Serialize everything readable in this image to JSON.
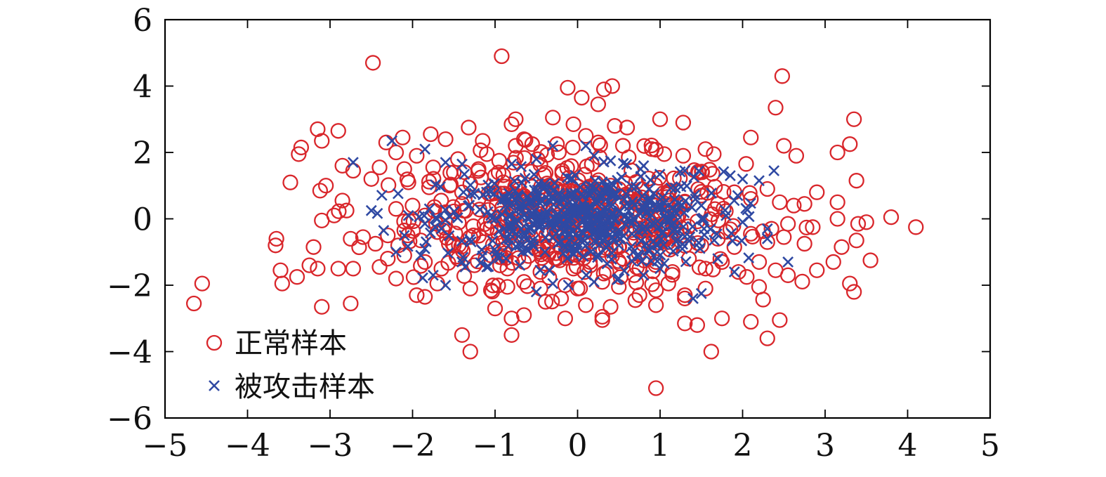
{
  "chart_data": {
    "type": "scatter",
    "title": "",
    "xlabel": "",
    "ylabel": "",
    "xlim": [
      -5,
      5
    ],
    "ylim": [
      -6,
      6
    ],
    "xticks": [
      -5,
      -4,
      -3,
      -2,
      -1,
      0,
      1,
      2,
      3,
      4,
      5
    ],
    "yticks": [
      -6,
      -4,
      -2,
      0,
      2,
      4,
      6
    ],
    "xtick_labels": [
      "−5",
      "−4",
      "−3",
      "−2",
      "−1",
      "0",
      "1",
      "2",
      "3",
      "4",
      "5"
    ],
    "ytick_labels": [
      "−6",
      "−4",
      "−2",
      "0",
      "2",
      "4",
      "6"
    ],
    "grid": false,
    "legend_position": "bottom-left",
    "series": [
      {
        "name": "正常样本",
        "marker": "circle",
        "color": "#d9262b",
        "points": [
          [
            -0.92,
            4.9
          ],
          [
            -2.48,
            4.7
          ],
          [
            2.48,
            4.3
          ],
          [
            0.42,
            4.0
          ],
          [
            0.32,
            3.9
          ],
          [
            -0.12,
            3.95
          ],
          [
            0.05,
            3.65
          ],
          [
            2.4,
            3.35
          ],
          [
            0.25,
            3.45
          ],
          [
            -0.75,
            3.0
          ],
          [
            -0.8,
            2.85
          ],
          [
            1.0,
            3.0
          ],
          [
            1.28,
            2.9
          ],
          [
            3.35,
            3.0
          ],
          [
            -0.3,
            3.05
          ],
          [
            -0.05,
            2.85
          ],
          [
            0.45,
            2.8
          ],
          [
            0.6,
            2.75
          ],
          [
            -3.15,
            2.7
          ],
          [
            -2.9,
            2.65
          ],
          [
            -1.78,
            2.55
          ],
          [
            -1.32,
            2.75
          ],
          [
            -3.1,
            2.35
          ],
          [
            -3.35,
            2.15
          ],
          [
            -3.38,
            1.95
          ],
          [
            -2.12,
            2.45
          ],
          [
            -2.32,
            2.3
          ],
          [
            -1.6,
            2.4
          ],
          [
            -1.15,
            2.35
          ],
          [
            -0.65,
            2.4
          ],
          [
            -0.55,
            2.25
          ],
          [
            -0.75,
            2.2
          ],
          [
            -0.25,
            2.25
          ],
          [
            0.1,
            2.5
          ],
          [
            0.25,
            2.3
          ],
          [
            0.55,
            2.2
          ],
          [
            0.9,
            2.1
          ],
          [
            1.05,
            1.95
          ],
          [
            1.28,
            1.9
          ],
          [
            1.55,
            2.1
          ],
          [
            1.65,
            1.95
          ],
          [
            2.1,
            2.45
          ],
          [
            2.5,
            2.2
          ],
          [
            2.65,
            1.9
          ],
          [
            3.15,
            2.0
          ],
          [
            3.3,
            2.25
          ],
          [
            -2.2,
            2.0
          ],
          [
            -1.95,
            1.9
          ],
          [
            -1.45,
            1.8
          ],
          [
            -1.1,
            1.95
          ],
          [
            -0.95,
            1.75
          ],
          [
            -2.85,
            1.6
          ],
          [
            -2.72,
            1.45
          ],
          [
            -2.4,
            1.55
          ],
          [
            -2.1,
            1.5
          ],
          [
            -1.75,
            1.55
          ],
          [
            -1.5,
            1.4
          ],
          [
            -1.2,
            1.5
          ],
          [
            -1.0,
            1.3
          ],
          [
            -3.05,
            1.0
          ],
          [
            -3.12,
            0.85
          ],
          [
            -2.5,
            1.2
          ],
          [
            -2.05,
            1.1
          ],
          [
            -1.8,
            0.95
          ],
          [
            -1.55,
            1.0
          ],
          [
            -1.3,
            1.05
          ],
          [
            -0.9,
            1.1
          ],
          [
            -2.85,
            0.55
          ],
          [
            -2.8,
            0.25
          ],
          [
            -2.95,
            0.1
          ],
          [
            -3.1,
            -0.05
          ],
          [
            -2.2,
            0.3
          ],
          [
            -2.0,
            0.4
          ],
          [
            -1.85,
            0.1
          ],
          [
            -1.6,
            0.2
          ],
          [
            -1.4,
            0.45
          ],
          [
            -1.2,
            0.6
          ],
          [
            -1.05,
            0.75
          ],
          [
            -0.85,
            0.6
          ],
          [
            -0.65,
            0.5
          ],
          [
            -0.45,
            0.7
          ],
          [
            -0.25,
            0.9
          ],
          [
            -0.1,
            0.6
          ],
          [
            0.1,
            0.8
          ],
          [
            0.3,
            0.55
          ],
          [
            0.5,
            0.9
          ],
          [
            0.7,
            0.7
          ],
          [
            0.9,
            0.45
          ],
          [
            1.1,
            0.8
          ],
          [
            1.3,
            0.5
          ],
          [
            1.5,
            0.7
          ],
          [
            1.7,
            0.45
          ],
          [
            1.9,
            0.8
          ],
          [
            2.1,
            0.6
          ],
          [
            2.3,
            0.9
          ],
          [
            2.45,
            0.5
          ],
          [
            2.62,
            0.4
          ],
          [
            2.75,
            0.45
          ],
          [
            2.9,
            0.8
          ],
          [
            3.15,
            0.5
          ],
          [
            3.38,
            1.15
          ],
          [
            3.8,
            0.05
          ],
          [
            4.1,
            -0.25
          ],
          [
            3.4,
            -0.15
          ],
          [
            3.5,
            -0.1
          ],
          [
            3.15,
            0.0
          ],
          [
            2.85,
            -0.25
          ],
          [
            2.55,
            -0.15
          ],
          [
            2.35,
            -0.3
          ],
          [
            -3.65,
            -0.6
          ],
          [
            -3.66,
            -0.8
          ],
          [
            -2.75,
            -0.6
          ],
          [
            -2.6,
            -0.55
          ],
          [
            -2.45,
            -0.75
          ],
          [
            -2.3,
            -0.5
          ],
          [
            -2.1,
            -0.35
          ],
          [
            -1.9,
            -0.65
          ],
          [
            -1.7,
            -0.4
          ],
          [
            -1.5,
            -0.8
          ],
          [
            -1.3,
            -0.55
          ],
          [
            -1.1,
            -0.3
          ],
          [
            -0.9,
            -0.7
          ],
          [
            -0.7,
            -0.5
          ],
          [
            -0.5,
            -0.9
          ],
          [
            -0.3,
            -0.6
          ],
          [
            -0.1,
            -0.4
          ],
          [
            0.1,
            -0.75
          ],
          [
            0.3,
            -0.5
          ],
          [
            0.5,
            -0.85
          ],
          [
            0.7,
            -0.6
          ],
          [
            0.9,
            -0.3
          ],
          [
            1.1,
            -0.7
          ],
          [
            1.3,
            -0.5
          ],
          [
            1.5,
            -0.8
          ],
          [
            1.7,
            -0.6
          ],
          [
            1.9,
            -0.85
          ],
          [
            2.1,
            -0.45
          ],
          [
            2.3,
            -0.7
          ],
          [
            2.5,
            -0.55
          ],
          [
            2.75,
            -0.75
          ],
          [
            3.2,
            -0.85
          ],
          [
            3.38,
            -0.65
          ],
          [
            3.55,
            -1.25
          ],
          [
            3.1,
            -1.3
          ],
          [
            2.9,
            -1.55
          ],
          [
            -3.2,
            -0.85
          ],
          [
            -3.25,
            -1.4
          ],
          [
            -3.15,
            -1.5
          ],
          [
            -2.9,
            -1.5
          ],
          [
            -2.72,
            -1.5
          ],
          [
            -2.3,
            -1.2
          ],
          [
            -2.1,
            -1.1
          ],
          [
            -1.85,
            -1.3
          ],
          [
            -1.65,
            -1.5
          ],
          [
            -1.45,
            -1.2
          ],
          [
            -1.25,
            -1.4
          ],
          [
            -1.05,
            -1.1
          ],
          [
            -0.85,
            -1.5
          ],
          [
            -0.65,
            -1.3
          ],
          [
            -0.45,
            -1.6
          ],
          [
            -0.25,
            -1.2
          ],
          [
            -0.05,
            -1.5
          ],
          [
            0.15,
            -1.3
          ],
          [
            0.35,
            -1.6
          ],
          [
            0.55,
            -1.2
          ],
          [
            0.75,
            -1.5
          ],
          [
            0.95,
            -1.3
          ],
          [
            1.15,
            -1.6
          ],
          [
            1.35,
            -1.2
          ],
          [
            1.55,
            -1.5
          ],
          [
            1.75,
            -1.3
          ],
          [
            1.95,
            -1.6
          ],
          [
            2.2,
            -1.3
          ],
          [
            2.4,
            -1.55
          ],
          [
            2.55,
            -1.7
          ],
          [
            -3.6,
            -1.55
          ],
          [
            -3.58,
            -1.95
          ],
          [
            -3.4,
            -1.75
          ],
          [
            -2.4,
            -1.45
          ],
          [
            -2.2,
            -1.8
          ],
          [
            -1.95,
            -2.3
          ],
          [
            -1.85,
            -2.35
          ],
          [
            -1.7,
            -1.95
          ],
          [
            -1.3,
            -2.1
          ],
          [
            -1.05,
            -2.15
          ],
          [
            -0.85,
            -2.05
          ],
          [
            -0.65,
            -1.9
          ],
          [
            -0.45,
            -2.1
          ],
          [
            -0.15,
            -2.0
          ],
          [
            0.0,
            -2.1
          ],
          [
            0.3,
            -1.9
          ],
          [
            0.5,
            -2.05
          ],
          [
            0.75,
            -2.3
          ],
          [
            0.95,
            -2.15
          ],
          [
            1.1,
            -1.95
          ],
          [
            1.3,
            -2.3
          ],
          [
            1.55,
            -2.1
          ],
          [
            2.05,
            -1.75
          ],
          [
            2.2,
            -2.05
          ],
          [
            3.3,
            -1.95
          ],
          [
            3.35,
            -2.2
          ],
          [
            -4.55,
            -1.95
          ],
          [
            -4.65,
            -2.55
          ],
          [
            -3.1,
            -2.65
          ],
          [
            -2.75,
            -2.55
          ],
          [
            -1.0,
            -2.7
          ],
          [
            -0.65,
            -2.9
          ],
          [
            -0.2,
            -2.4
          ],
          [
            0.1,
            -2.6
          ],
          [
            0.4,
            -2.65
          ],
          [
            0.7,
            -2.45
          ],
          [
            0.95,
            -2.6
          ],
          [
            1.3,
            -2.4
          ],
          [
            0.3,
            -2.95
          ],
          [
            0.3,
            -3.05
          ],
          [
            -0.15,
            -3.0
          ],
          [
            -0.8,
            -3.0
          ],
          [
            1.3,
            -3.15
          ],
          [
            1.45,
            -3.2
          ],
          [
            1.75,
            -3.0
          ],
          [
            2.1,
            -3.1
          ],
          [
            2.45,
            -3.05
          ],
          [
            -0.8,
            -3.5
          ],
          [
            -1.4,
            -3.5
          ],
          [
            2.3,
            -3.6
          ],
          [
            -1.3,
            -4.0
          ],
          [
            1.62,
            -4.0
          ],
          [
            0.95,
            -5.1
          ]
        ]
      },
      {
        "name": "被攻击样本",
        "marker": "x",
        "color": "#2f49a3",
        "points": [
          [
            -2.25,
            2.35
          ],
          [
            -1.85,
            2.1
          ],
          [
            -2.72,
            1.7
          ],
          [
            -1.6,
            1.7
          ],
          [
            -1.4,
            1.65
          ],
          [
            -0.8,
            1.65
          ],
          [
            -0.5,
            1.8
          ],
          [
            -0.3,
            2.2
          ],
          [
            0.1,
            2.2
          ],
          [
            0.2,
            1.9
          ],
          [
            0.4,
            1.75
          ],
          [
            0.8,
            1.6
          ],
          [
            1.3,
            1.45
          ],
          [
            1.85,
            1.3
          ],
          [
            2.0,
            1.2
          ],
          [
            2.38,
            1.45
          ],
          [
            2.2,
            1.15
          ],
          [
            -2.5,
            0.25
          ],
          [
            -2.05,
            0.1
          ],
          [
            -1.7,
            0.0
          ],
          [
            -1.65,
            -0.3
          ],
          [
            -2.35,
            -0.35
          ],
          [
            -2.1,
            -0.5
          ],
          [
            -2.2,
            -1.0
          ],
          [
            -1.9,
            -1.1
          ],
          [
            -1.6,
            -2.0
          ],
          [
            -1.75,
            -1.7
          ],
          [
            -1.4,
            -1.3
          ],
          [
            -1.1,
            -1.45
          ],
          [
            -0.7,
            -1.4
          ],
          [
            -0.5,
            -2.2
          ],
          [
            -0.3,
            -1.95
          ],
          [
            0.2,
            -1.9
          ],
          [
            0.5,
            -1.8
          ],
          [
            0.8,
            -1.7
          ],
          [
            1.0,
            -1.5
          ],
          [
            1.4,
            -2.4
          ],
          [
            1.5,
            -2.25
          ],
          [
            1.7,
            -1.2
          ],
          [
            1.9,
            -1.6
          ],
          [
            2.3,
            -0.6
          ],
          [
            2.55,
            -1.3
          ],
          [
            2.3,
            -0.3
          ],
          [
            2.0,
            -0.1
          ],
          [
            1.8,
            0.1
          ],
          [
            1.5,
            0.4
          ]
        ]
      }
    ],
    "cloud": {
      "description_center": [
        0.0,
        0.0
      ],
      "core_x_range": [
        -1.4,
        1.5
      ],
      "core_y_range": [
        -1.0,
        1.0
      ]
    }
  }
}
